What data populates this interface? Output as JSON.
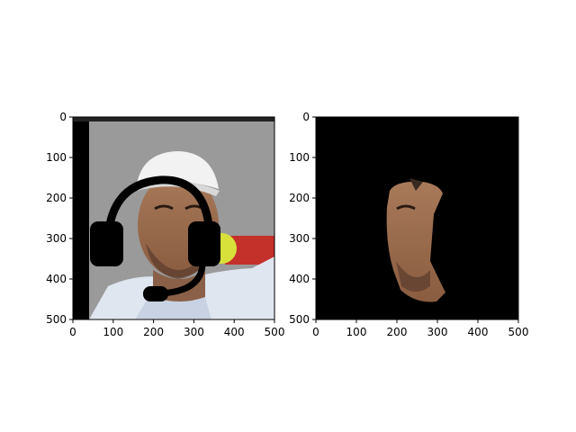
{
  "chart_data": [
    {
      "type": "image",
      "panel": "left",
      "content": "photo of a man in a white cap with a black headset drawn over his face",
      "xlim": [
        0,
        500
      ],
      "ylim": [
        500,
        0
      ],
      "xticks": [
        "0",
        "100",
        "200",
        "300",
        "400",
        "500"
      ],
      "yticks": [
        "0",
        "100",
        "200",
        "300",
        "400",
        "500"
      ]
    },
    {
      "type": "image",
      "panel": "right",
      "content": "segmentation mask: only the face region visible on black background",
      "xlim": [
        0,
        500
      ],
      "ylim": [
        500,
        0
      ],
      "xticks": [
        "0",
        "100",
        "200",
        "300",
        "400",
        "500"
      ],
      "yticks": [
        "0",
        "100",
        "200",
        "300",
        "400",
        "500"
      ]
    }
  ]
}
